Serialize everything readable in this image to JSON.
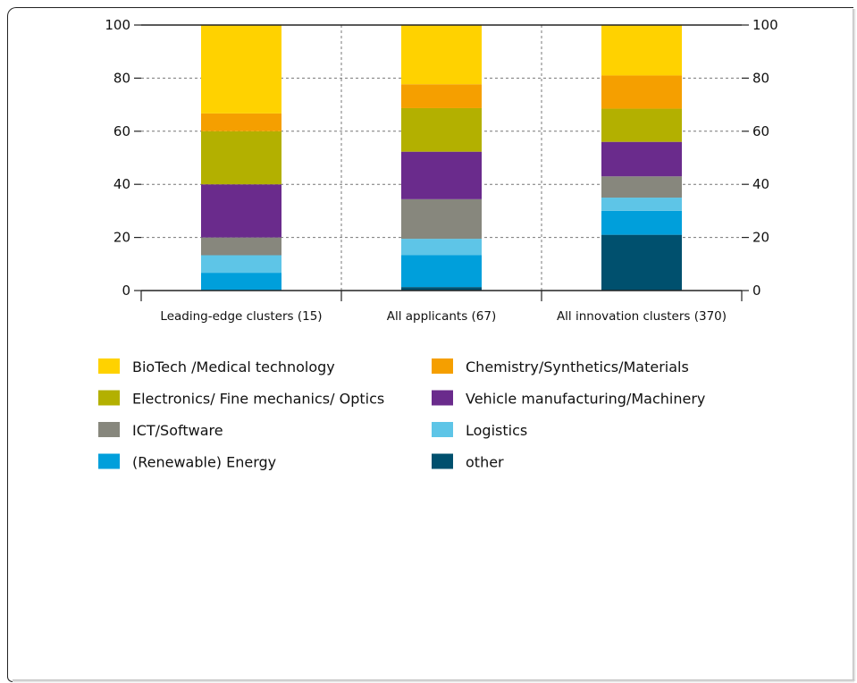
{
  "chart_data": {
    "type": "bar",
    "stacked": true,
    "categories": [
      "Leading-edge clusters (15)",
      "All applicants (67)",
      "All innovation clusters (370)"
    ],
    "ylim": [
      0,
      100
    ],
    "yticks": [
      "0",
      "20",
      "40",
      "60",
      "80",
      "100"
    ],
    "ytick_values": [
      0,
      20,
      40,
      60,
      80,
      100
    ],
    "grid": true,
    "legend_position": "bottom",
    "series": [
      {
        "name": "other",
        "color": "#00506e",
        "values": [
          0,
          1.3,
          21
        ]
      },
      {
        "name": "(Renewable) Energy",
        "color": "#009fdb",
        "values": [
          6.7,
          12,
          9
        ]
      },
      {
        "name": "Logistics",
        "color": "#5ec5e7",
        "values": [
          6.6,
          6.2,
          5
        ]
      },
      {
        "name": "ICT/Software",
        "color": "#87877d",
        "values": [
          6.7,
          14.9,
          8
        ]
      },
      {
        "name": "Vehicle manufacturing/Machinery",
        "color": "#6a2b8c",
        "values": [
          20,
          17.9,
          13
        ]
      },
      {
        "name": "Electronics/ Fine mechanics/ Optics",
        "color": "#b3b000",
        "values": [
          20,
          16.4,
          12.5
        ]
      },
      {
        "name": "Chemistry/Synthetics/Materials",
        "color": "#f59f00",
        "values": [
          6.7,
          9,
          12.5
        ]
      },
      {
        "name": "BioTech /Medical technology",
        "color": "#ffd200",
        "values": [
          33.3,
          22.3,
          19
        ]
      }
    ],
    "legend_order": [
      "BioTech /Medical technology",
      "Chemistry/Synthetics/Materials",
      "Electronics/ Fine mechanics/ Optics",
      "Vehicle manufacturing/Machinery",
      "ICT/Software",
      "Logistics",
      "(Renewable) Energy",
      "other"
    ]
  }
}
